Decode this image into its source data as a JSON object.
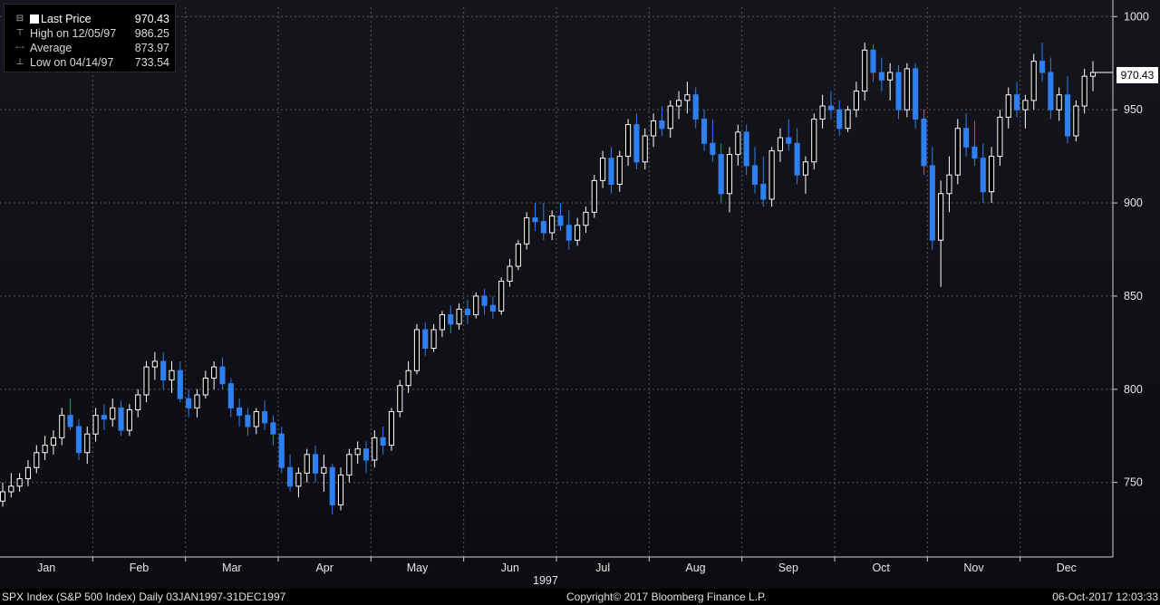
{
  "legend": {
    "last_price_label": "Last Price",
    "last_price_value": "970.43",
    "high_label": "High on 12/05/97",
    "high_value": "986.25",
    "average_label": "Average",
    "average_value": "873.97",
    "low_label": "Low on 04/14/97",
    "low_value": "733.54"
  },
  "last_price_tag": "970.43",
  "footer": {
    "left": "SPX Index (S&P 500 Index)  Daily 03JAN1997-31DEC1997",
    "center": "Copyright© 2017 Bloomberg Finance L.P.",
    "right": "06-Oct-2017 12:03:33"
  },
  "colors": {
    "up": "#ffffff",
    "down": "#2e7ff0",
    "grid": "#5a5a5a",
    "background": "#0f0f14"
  },
  "chart_data": {
    "type": "candlestick",
    "year_label": "1997",
    "x_labels": [
      "Jan",
      "Feb",
      "Mar",
      "Apr",
      "May",
      "Jun",
      "Jul",
      "Aug",
      "Sep",
      "Oct",
      "Nov",
      "Dec"
    ],
    "y_ticks": [
      750,
      800,
      850,
      900,
      950,
      1000
    ],
    "ylim": [
      710,
      1005
    ],
    "grid": true,
    "series": [
      {
        "values": [
          [
            740,
            750,
            737,
            745
          ],
          [
            745,
            755,
            742,
            748
          ],
          [
            748,
            755,
            745,
            752
          ],
          [
            752,
            762,
            748,
            758
          ],
          [
            758,
            770,
            755,
            766
          ],
          [
            766,
            775,
            762,
            770
          ],
          [
            770,
            778,
            765,
            774
          ],
          [
            774,
            790,
            770,
            786
          ],
          [
            786,
            795,
            778,
            780
          ],
          [
            780,
            784,
            762,
            766
          ],
          [
            766,
            780,
            760,
            776
          ],
          [
            776,
            790,
            772,
            786
          ],
          [
            786,
            792,
            778,
            784
          ],
          [
            784,
            795,
            780,
            790
          ],
          [
            790,
            794,
            775,
            778
          ],
          [
            778,
            792,
            775,
            789
          ],
          [
            789,
            800,
            785,
            797
          ],
          [
            797,
            815,
            793,
            812
          ],
          [
            812,
            820,
            805,
            815
          ],
          [
            815,
            820,
            800,
            805
          ],
          [
            805,
            815,
            798,
            810
          ],
          [
            810,
            815,
            793,
            795
          ],
          [
            795,
            800,
            785,
            790
          ],
          [
            790,
            800,
            785,
            797
          ],
          [
            797,
            810,
            795,
            806
          ],
          [
            806,
            815,
            800,
            812
          ],
          [
            812,
            817,
            800,
            803
          ],
          [
            803,
            806,
            785,
            790
          ],
          [
            790,
            795,
            780,
            786
          ],
          [
            786,
            790,
            775,
            780
          ],
          [
            780,
            790,
            776,
            788
          ],
          [
            788,
            794,
            778,
            782
          ],
          [
            782,
            786,
            770,
            776
          ],
          [
            776,
            780,
            755,
            758
          ],
          [
            758,
            765,
            745,
            748
          ],
          [
            748,
            758,
            742,
            755
          ],
          [
            755,
            768,
            750,
            765
          ],
          [
            765,
            770,
            750,
            755
          ],
          [
            755,
            765,
            745,
            758
          ],
          [
            758,
            760,
            733,
            738
          ],
          [
            738,
            758,
            735,
            754
          ],
          [
            754,
            768,
            750,
            765
          ],
          [
            765,
            772,
            760,
            768
          ],
          [
            768,
            772,
            755,
            762
          ],
          [
            762,
            778,
            758,
            774
          ],
          [
            774,
            780,
            765,
            770
          ],
          [
            770,
            790,
            767,
            788
          ],
          [
            788,
            805,
            785,
            802
          ],
          [
            802,
            815,
            798,
            810
          ],
          [
            810,
            835,
            808,
            832
          ],
          [
            832,
            836,
            818,
            822
          ],
          [
            822,
            835,
            820,
            832
          ],
          [
            832,
            842,
            828,
            840
          ],
          [
            840,
            845,
            830,
            835
          ],
          [
            835,
            846,
            832,
            843
          ],
          [
            843,
            848,
            835,
            840
          ],
          [
            840,
            852,
            838,
            850
          ],
          [
            850,
            854,
            840,
            845
          ],
          [
            845,
            850,
            838,
            842
          ],
          [
            842,
            860,
            840,
            858
          ],
          [
            858,
            870,
            855,
            866
          ],
          [
            866,
            880,
            864,
            878
          ],
          [
            878,
            895,
            875,
            892
          ],
          [
            892,
            900,
            885,
            890
          ],
          [
            890,
            900,
            880,
            884
          ],
          [
            884,
            896,
            880,
            893
          ],
          [
            893,
            900,
            885,
            888
          ],
          [
            888,
            896,
            875,
            880
          ],
          [
            880,
            892,
            877,
            888
          ],
          [
            888,
            898,
            884,
            895
          ],
          [
            895,
            915,
            892,
            912
          ],
          [
            912,
            928,
            908,
            924
          ],
          [
            924,
            930,
            905,
            910
          ],
          [
            910,
            928,
            906,
            925
          ],
          [
            925,
            945,
            920,
            942
          ],
          [
            942,
            948,
            918,
            922
          ],
          [
            922,
            940,
            918,
            936
          ],
          [
            936,
            948,
            930,
            944
          ],
          [
            944,
            952,
            936,
            940
          ],
          [
            940,
            955,
            935,
            952
          ],
          [
            952,
            960,
            945,
            955
          ],
          [
            955,
            965,
            948,
            958
          ],
          [
            958,
            962,
            940,
            945
          ],
          [
            945,
            950,
            928,
            932
          ],
          [
            932,
            945,
            922,
            926
          ],
          [
            926,
            932,
            900,
            905
          ],
          [
            905,
            930,
            895,
            926
          ],
          [
            926,
            942,
            920,
            938
          ],
          [
            938,
            942,
            915,
            920
          ],
          [
            920,
            930,
            905,
            910
          ],
          [
            910,
            925,
            898,
            902
          ],
          [
            902,
            930,
            898,
            928
          ],
          [
            928,
            940,
            922,
            935
          ],
          [
            935,
            945,
            928,
            932
          ],
          [
            932,
            940,
            910,
            915
          ],
          [
            915,
            925,
            905,
            922
          ],
          [
            922,
            948,
            918,
            945
          ],
          [
            945,
            958,
            940,
            952
          ],
          [
            952,
            960,
            945,
            950
          ],
          [
            950,
            955,
            936,
            940
          ],
          [
            940,
            952,
            938,
            950
          ],
          [
            950,
            965,
            946,
            960
          ],
          [
            960,
            986,
            955,
            982
          ],
          [
            982,
            985,
            965,
            970
          ],
          [
            970,
            978,
            960,
            966
          ],
          [
            966,
            975,
            955,
            970
          ],
          [
            970,
            974,
            945,
            950
          ],
          [
            950,
            975,
            946,
            972
          ],
          [
            972,
            975,
            940,
            945
          ],
          [
            945,
            950,
            915,
            920
          ],
          [
            920,
            930,
            875,
            880
          ],
          [
            880,
            912,
            855,
            905
          ],
          [
            905,
            925,
            895,
            915
          ],
          [
            915,
            945,
            910,
            940
          ],
          [
            940,
            948,
            925,
            930
          ],
          [
            930,
            944,
            920,
            924
          ],
          [
            924,
            932,
            900,
            906
          ],
          [
            906,
            930,
            900,
            925
          ],
          [
            925,
            950,
            920,
            946
          ],
          [
            946,
            962,
            940,
            958
          ],
          [
            958,
            965,
            946,
            950
          ],
          [
            950,
            958,
            940,
            955
          ],
          [
            955,
            980,
            950,
            976
          ],
          [
            976,
            986,
            965,
            970
          ],
          [
            970,
            978,
            945,
            950
          ],
          [
            950,
            962,
            944,
            958
          ],
          [
            958,
            968,
            932,
            936
          ],
          [
            936,
            955,
            933,
            952
          ],
          [
            952,
            972,
            948,
            968
          ],
          [
            968,
            976,
            960,
            970
          ]
        ]
      }
    ]
  }
}
